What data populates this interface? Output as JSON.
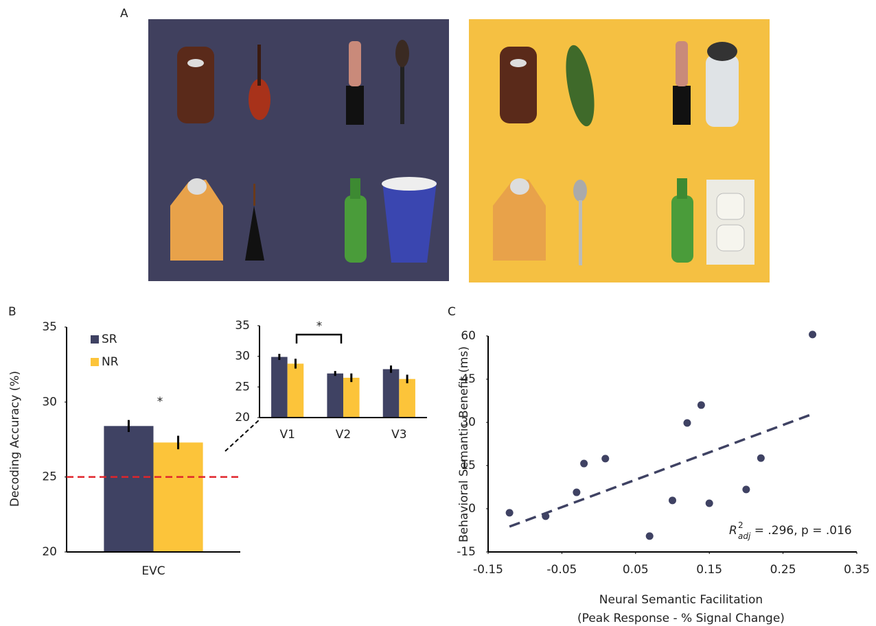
{
  "panels": {
    "a": "A",
    "b": "B",
    "c": "C"
  },
  "chart_data": [
    {
      "type": "bar",
      "y_label": "Decoding Accuracy (%)",
      "categories": [
        "EVC"
      ],
      "series": [
        {
          "name": "SR",
          "color": "#3f4263",
          "values": [
            28.4
          ],
          "errors": [
            0.4
          ]
        },
        {
          "name": "NR",
          "color": "#fcc43a",
          "values": [
            27.3
          ],
          "errors": [
            0.45
          ]
        }
      ],
      "ylim": [
        20,
        35
      ],
      "yticks": [
        20,
        25,
        30,
        35
      ],
      "reference_line": {
        "value": 25,
        "color": "#e0252b"
      },
      "annotation": "*"
    },
    {
      "type": "bar",
      "categories": [
        "V1",
        "V2",
        "V3"
      ],
      "series": [
        {
          "color": "#3f4263",
          "values": [
            29.9,
            27.2,
            27.9
          ],
          "errors": [
            0.5,
            0.4,
            0.6
          ]
        },
        {
          "color": "#fcc43a",
          "values": [
            28.8,
            26.5,
            26.3
          ],
          "errors": [
            0.8,
            0.7,
            0.7
          ]
        }
      ],
      "ylim": [
        20,
        35
      ],
      "yticks": [
        20,
        25,
        30,
        35
      ],
      "annotation": "*"
    },
    {
      "type": "scatter",
      "y_label": "Behavioral Semantic Benefit (ms)",
      "x_label": [
        "Neural Semantic Facilitation",
        "(Peak Response  - % Signal Change)"
      ],
      "x": [
        -0.121,
        -0.072,
        -0.02,
        0.009,
        -0.03,
        0.069,
        0.1,
        0.12,
        0.139,
        0.15,
        0.2,
        0.22,
        0.29
      ],
      "y": [
        -1.4,
        -2.6,
        15.7,
        17.4,
        5.7,
        -9.5,
        2.9,
        29.8,
        36.0,
        1.9,
        6.7,
        17.6,
        60.5
      ],
      "color": "#3f4263",
      "fit": {
        "x": [
          -0.121,
          0.29
        ],
        "y": [
          -6.2,
          32.9
        ]
      },
      "xlim": [
        -0.15,
        0.35
      ],
      "xticks": [
        -0.15,
        -0.05,
        0.05,
        0.15,
        0.25,
        0.35
      ],
      "ylim": [
        -15,
        60
      ],
      "yticks": [
        -15,
        0,
        15,
        30,
        45,
        60
      ],
      "annotation": {
        "base": "R",
        "sup": "2",
        "sub": "adj",
        "text": " =  .296, p = .016"
      }
    }
  ]
}
